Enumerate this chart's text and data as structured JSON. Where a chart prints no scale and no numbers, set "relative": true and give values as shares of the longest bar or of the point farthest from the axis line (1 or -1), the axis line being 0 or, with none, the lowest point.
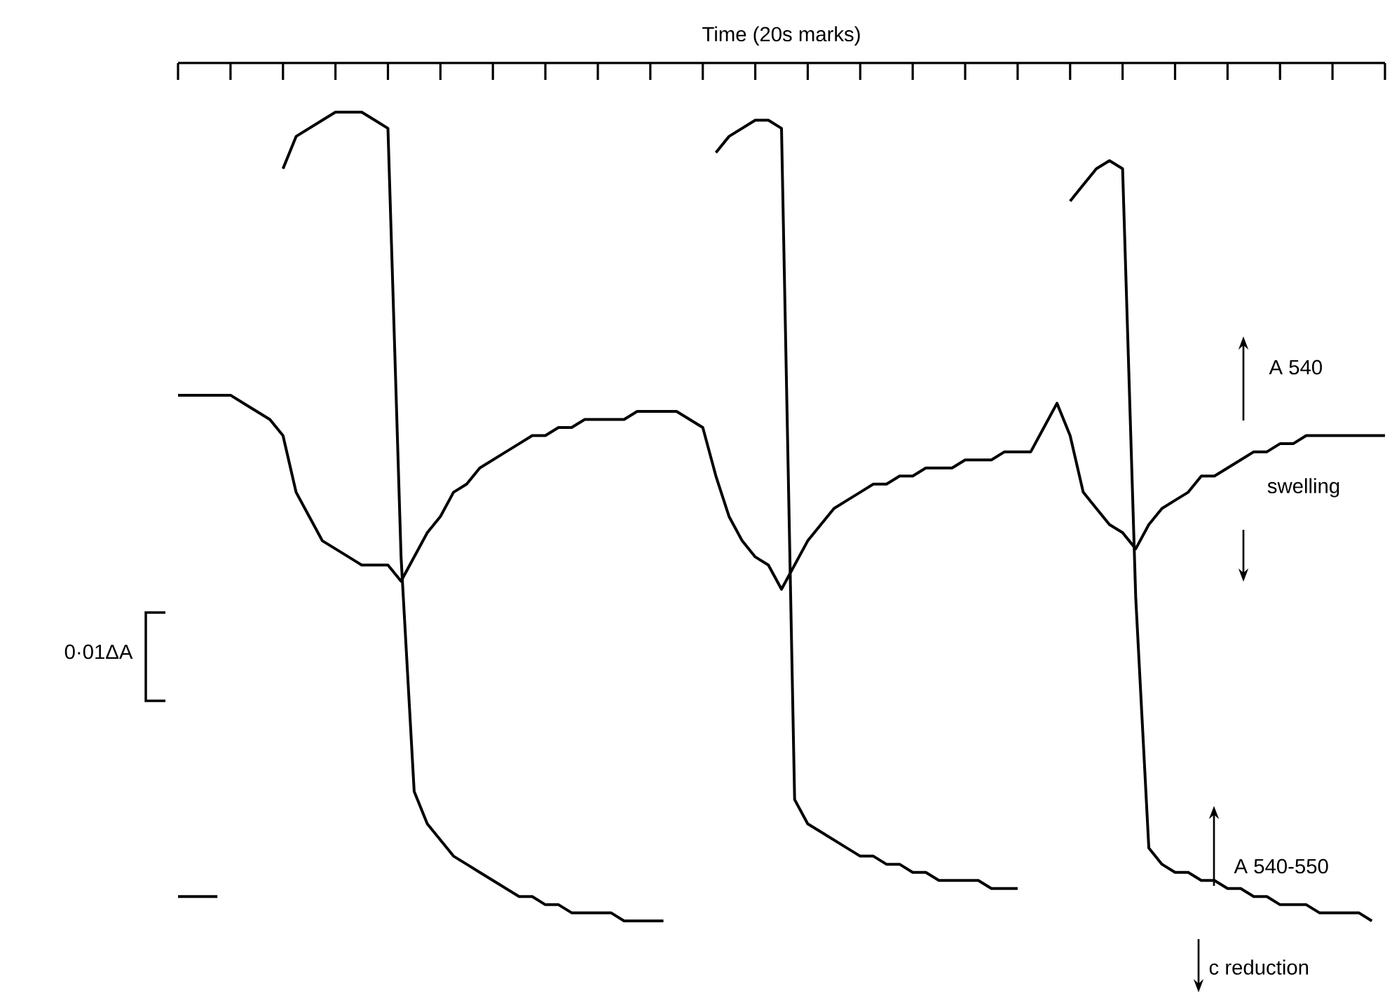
{
  "chart_data": {
    "type": "line",
    "relative": true,
    "xlabel": "Time  (20s marks)",
    "marker": "none",
    "categories": [
      null,
      null,
      null,
      null,
      null,
      null,
      null,
      null,
      null,
      null,
      null,
      null,
      null,
      null,
      null,
      null,
      null,
      null,
      null,
      null,
      null,
      null,
      null,
      null,
      null,
      null,
      null,
      null,
      null,
      null,
      null,
      null,
      null,
      null,
      null,
      null,
      null,
      null,
      null,
      null,
      null,
      null,
      null,
      null,
      null,
      null,
      null,
      null,
      null,
      null,
      null,
      null,
      null,
      null,
      null,
      null,
      null,
      null,
      null,
      null,
      null,
      null,
      null,
      null,
      null,
      null,
      null,
      null,
      null,
      null,
      null,
      null,
      null,
      null,
      null,
      null,
      null,
      null,
      null,
      null,
      null,
      null,
      null,
      null,
      null,
      null,
      null,
      null,
      null,
      null,
      null,
      null,
      null
    ],
    "annotations": [
      "0·01ΔA",
      "swelling",
      "c reduction"
    ],
    "series": [
      {
        "name": "A 540",
        "color": "#000000",
        "values": [
          0.65,
          0.65,
          0.65,
          0.65,
          0.65,
          0.64,
          0.63,
          0.62,
          0.6,
          0.53,
          0.5,
          0.47,
          0.46,
          0.45,
          0.44,
          0.44,
          0.44,
          0.42,
          0.45,
          0.48,
          0.5,
          0.53,
          0.54,
          0.56,
          0.57,
          0.58,
          0.59,
          0.6,
          0.6,
          0.61,
          0.61,
          0.62,
          0.62,
          0.62,
          0.62,
          0.63,
          0.63,
          0.63,
          0.63,
          0.62,
          0.61,
          0.55,
          0.5,
          0.47,
          0.45,
          0.44,
          0.41,
          0.44,
          0.47,
          0.49,
          0.51,
          0.52,
          0.53,
          0.54,
          0.54,
          0.55,
          0.55,
          0.56,
          0.56,
          0.56,
          0.57,
          0.57,
          0.57,
          0.58,
          0.58,
          0.58,
          0.61,
          0.64,
          0.6,
          0.53,
          0.51,
          0.49,
          0.48,
          0.46,
          0.49,
          0.51,
          0.52,
          0.53,
          0.55,
          0.55,
          0.56,
          0.57,
          0.58,
          0.58,
          0.59,
          0.59,
          0.6,
          0.6,
          0.6,
          0.6,
          0.6,
          0.6,
          0.6
        ]
      },
      {
        "name": "A 540-550",
        "color": "#000000",
        "values": [
          0.03,
          0.03,
          0.03,
          0.03,
          null,
          null,
          null,
          null,
          0.93,
          0.97,
          0.98,
          0.99,
          1.0,
          1.0,
          1.0,
          0.99,
          0.98,
          0.45,
          0.16,
          0.12,
          0.1,
          0.08,
          0.07,
          0.06,
          0.05,
          0.04,
          0.03,
          0.03,
          0.02,
          0.02,
          0.01,
          0.01,
          0.01,
          0.01,
          0.0,
          0.0,
          0.0,
          0.0,
          null,
          null,
          null,
          0.95,
          0.97,
          0.98,
          0.99,
          0.99,
          0.98,
          0.15,
          0.12,
          0.11,
          0.1,
          0.09,
          0.08,
          0.08,
          0.07,
          0.07,
          0.06,
          0.06,
          0.05,
          0.05,
          0.05,
          0.05,
          0.04,
          0.04,
          0.04,
          null,
          null,
          null,
          0.89,
          0.91,
          0.93,
          0.94,
          0.93,
          0.4,
          0.09,
          0.07,
          0.06,
          0.06,
          0.05,
          0.05,
          0.04,
          0.04,
          0.03,
          0.03,
          0.02,
          0.02,
          0.02,
          0.01,
          0.01,
          0.01,
          0.01,
          0.0,
          null
        ]
      }
    ]
  }
}
